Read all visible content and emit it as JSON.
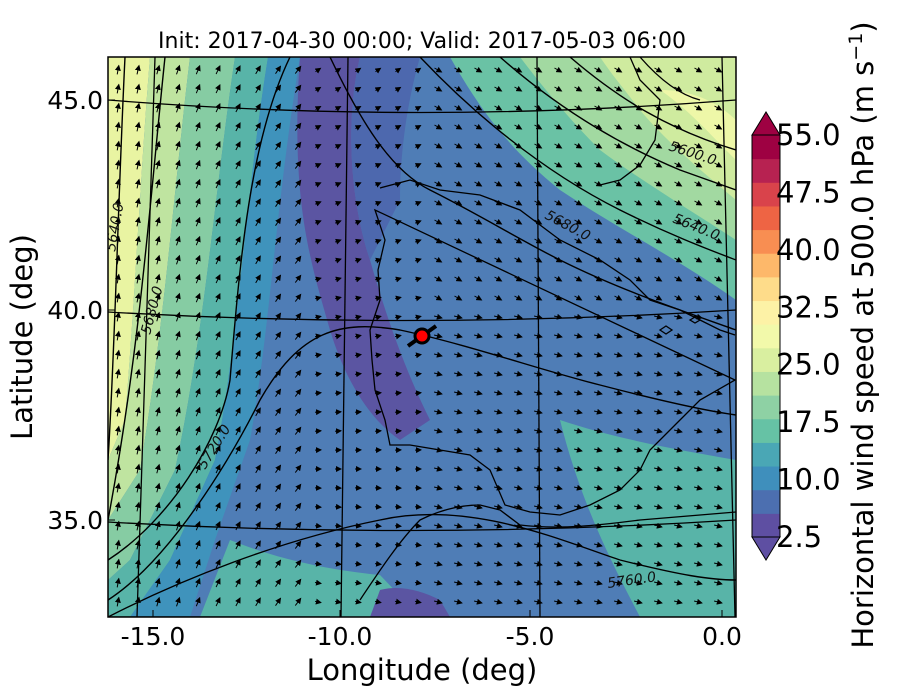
{
  "title": "Init: 2017-04-30 00:00; Valid: 2017-05-03 06:00",
  "xlabel": "Longitude (deg)",
  "ylabel": "Latitude (deg)",
  "colorbar": {
    "label_main": "Horizontal wind speed at 500.0 hPa (m s",
    "label_sup": "−1",
    "label_end": ")",
    "ticks": [
      "55.0",
      "47.5",
      "40.0",
      "32.5",
      "25.0",
      "17.5",
      "10.0",
      "2.5"
    ],
    "min": 2.5,
    "max": 55.0,
    "step": 2.5,
    "colors_low_to_high": [
      "#5e4fa2",
      "#4c6fb0",
      "#3f8fbc",
      "#4aa7b5",
      "#66c2a5",
      "#8ed1a4",
      "#b6e2a0",
      "#d9efa0",
      "#f2f9aa",
      "#fdf2a6",
      "#fedc8a",
      "#fdb86a",
      "#f88e52",
      "#ee6444",
      "#d9434b",
      "#b72251",
      "#9e0142"
    ]
  },
  "map": {
    "lon_ticks": [
      "-15.0",
      "-10.0",
      "-5.0",
      "0.0"
    ],
    "lat_ticks": [
      "45.0",
      "40.0",
      "35.0"
    ],
    "contour_labels": [
      "5600.0",
      "5640.0",
      "5680.0",
      "5640.0",
      "5680.0",
      "5720.0",
      "5760.0"
    ],
    "marker": {
      "lon": -7.8,
      "lat": 39.3,
      "color": "#ff0000"
    },
    "ocean_bands": [
      "#d6ee9c",
      "#a6dba0",
      "#7cc9a3",
      "#55b2aa",
      "#3f96bd",
      "#4776b4",
      "#5a56a2"
    ]
  }
}
